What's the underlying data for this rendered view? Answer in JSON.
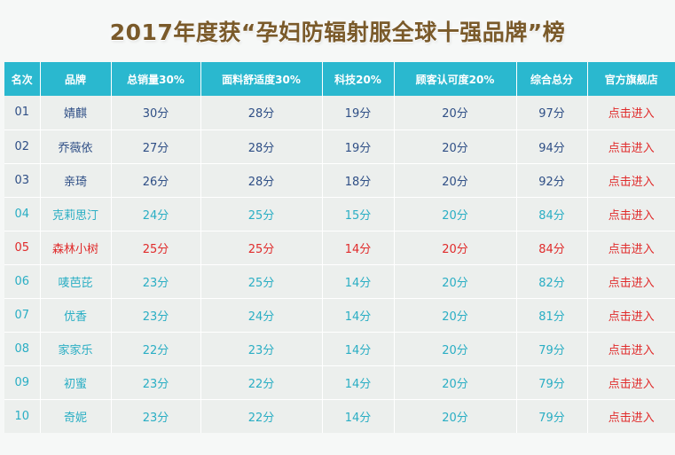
{
  "title": "2017年度获“孕妇防辐射服全球十强品牌”榜",
  "table": {
    "headers": {
      "rank": "名次",
      "brand": "品牌",
      "sales": "总销量30%",
      "comfort": "面料舒适度30%",
      "tech": "科技20%",
      "approval": "顾客认可度20%",
      "total": "综合总分",
      "store": "官方旗舰店"
    },
    "rows": [
      {
        "rank": "01",
        "brand": "婧麒",
        "sales": "30分",
        "comfort": "28分",
        "tech": "19分",
        "approval": "20分",
        "total": "97分",
        "store": "点击进入"
      },
      {
        "rank": "02",
        "brand": "乔薇依",
        "sales": "27分",
        "comfort": "28分",
        "tech": "19分",
        "approval": "20分",
        "total": "94分",
        "store": "点击进入"
      },
      {
        "rank": "03",
        "brand": "亲琦",
        "sales": "26分",
        "comfort": "28分",
        "tech": "18分",
        "approval": "20分",
        "total": "92分",
        "store": "点击进入"
      },
      {
        "rank": "04",
        "brand": "克莉思汀",
        "sales": "24分",
        "comfort": "25分",
        "tech": "15分",
        "approval": "20分",
        "total": "84分",
        "store": "点击进入"
      },
      {
        "rank": "05",
        "brand": "森林小树",
        "sales": "25分",
        "comfort": "25分",
        "tech": "14分",
        "approval": "20分",
        "total": "84分",
        "store": "点击进入"
      },
      {
        "rank": "06",
        "brand": "唛芭芘",
        "sales": "23分",
        "comfort": "25分",
        "tech": "14分",
        "approval": "20分",
        "total": "82分",
        "store": "点击进入"
      },
      {
        "rank": "07",
        "brand": "优香",
        "sales": "23分",
        "comfort": "24分",
        "tech": "14分",
        "approval": "20分",
        "total": "81分",
        "store": "点击进入"
      },
      {
        "rank": "08",
        "brand": "家家乐",
        "sales": "22分",
        "comfort": "23分",
        "tech": "14分",
        "approval": "20分",
        "total": "79分",
        "store": "点击进入"
      },
      {
        "rank": "09",
        "brand": "初蜜",
        "sales": "23分",
        "comfort": "22分",
        "tech": "14分",
        "approval": "20分",
        "total": "79分",
        "store": "点击进入"
      },
      {
        "rank": "10",
        "brand": "奇妮",
        "sales": "23分",
        "comfort": "22分",
        "tech": "14分",
        "approval": "20分",
        "total": "79分",
        "store": "点击进入"
      }
    ]
  },
  "colors": {
    "header_bg": "#2ab8cf",
    "title": "#7a5a2a",
    "text_dark_blue": "#2f4f86",
    "text_teal": "#2aaec4",
    "text_red": "#e02b2b"
  }
}
